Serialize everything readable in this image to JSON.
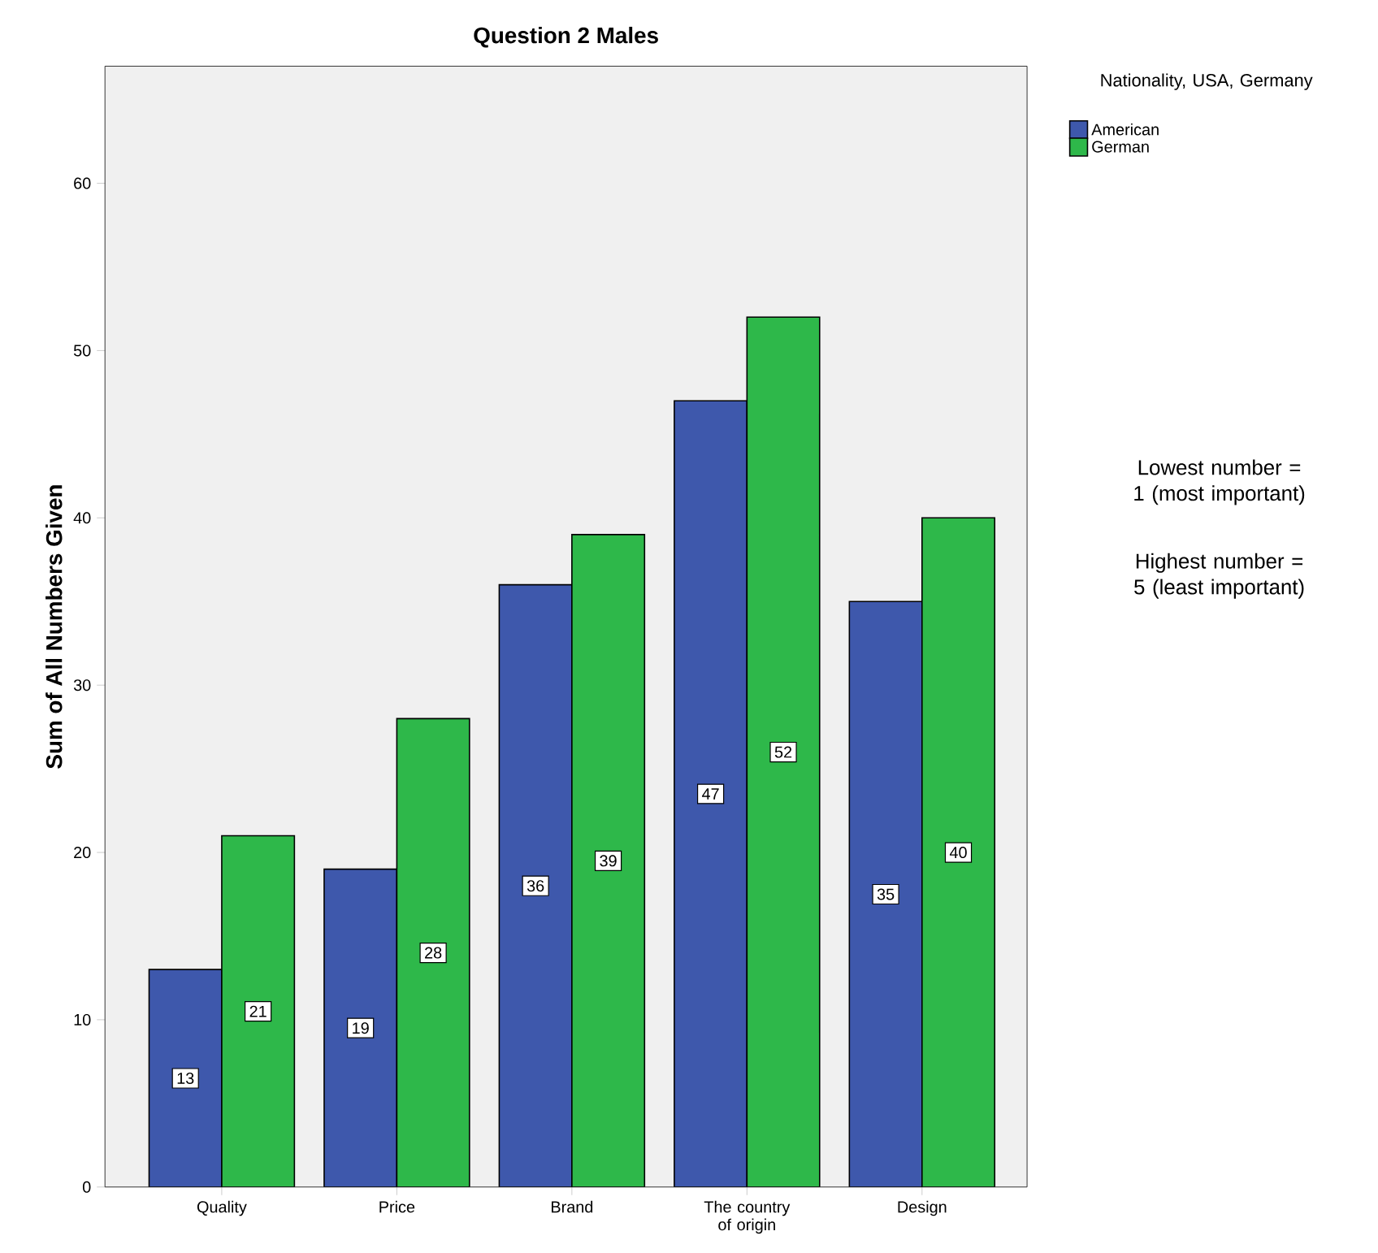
{
  "chart_data": {
    "type": "bar",
    "title": "Question 2 Males",
    "ylabel": "Sum of All Numbers Given",
    "legend_title": "Nationality, USA, Germany",
    "categories": [
      "Quality",
      "Price",
      "Brand",
      "The country of origin",
      "Design"
    ],
    "series": [
      {
        "name": "American",
        "color": "#3e58ac",
        "values": [
          13,
          19,
          36,
          47,
          35
        ]
      },
      {
        "name": "German",
        "color": "#2eb84a",
        "values": [
          21,
          28,
          39,
          52,
          40
        ]
      }
    ],
    "ylim": [
      0,
      67
    ],
    "yticks": [
      0,
      10,
      20,
      30,
      40,
      50,
      60
    ],
    "grid": false,
    "legend": "top right",
    "data_labels": true,
    "annotations": [
      "Lowest number = 1 (most important)",
      "Highest number = 5 (least important)"
    ]
  }
}
